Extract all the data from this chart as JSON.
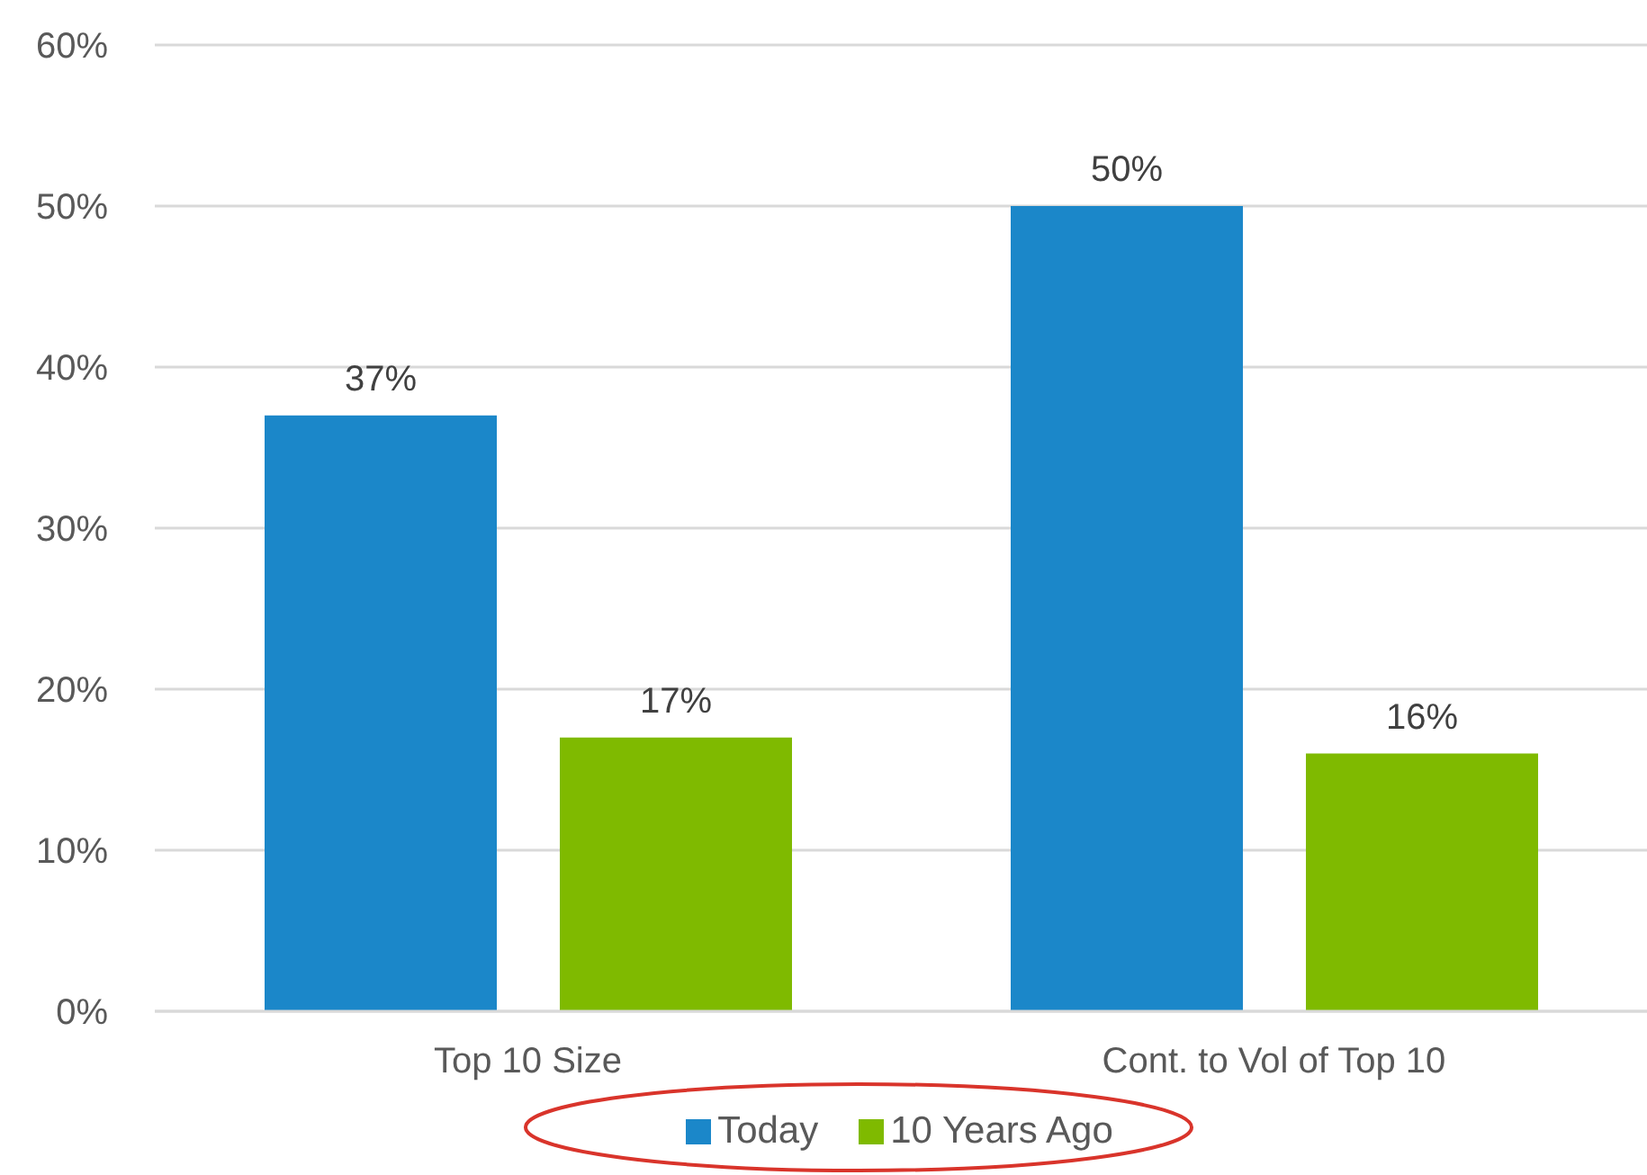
{
  "chart_data": {
    "type": "bar",
    "categories": [
      "Top 10 Size",
      "Cont. to Vol of Top 10"
    ],
    "series": [
      {
        "name": "Today",
        "color": "#1b87c9",
        "values": [
          37,
          50
        ],
        "value_labels": [
          "37%",
          "50%"
        ]
      },
      {
        "name": "10 Years Ago",
        "color": "#7fba00",
        "values": [
          17,
          16
        ],
        "value_labels": [
          "17%",
          "16%"
        ]
      }
    ],
    "ylim": [
      0,
      60
    ],
    "yticks": [
      {
        "value": 0,
        "label": "0%"
      },
      {
        "value": 10,
        "label": "10%"
      },
      {
        "value": 20,
        "label": "20%"
      },
      {
        "value": 30,
        "label": "30%"
      },
      {
        "value": 40,
        "label": "40%"
      },
      {
        "value": 50,
        "label": "50%"
      },
      {
        "value": 60,
        "label": "60%"
      }
    ],
    "grid": "y",
    "legend": "bottom"
  }
}
